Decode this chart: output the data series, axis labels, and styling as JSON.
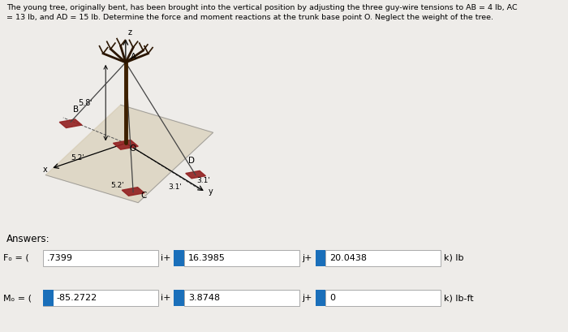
{
  "title_line1": "The young tree, originally bent, has been brought into the vertical position by adjusting the three guy-wire tensions to AB = 4 lb, AC",
  "title_line2": "= 13 lb, and AD = 15 lb. Determine the force and moment reactions at the trunk base point O. Neglect the weight of the tree.",
  "answers_label": "Answers:",
  "fo_val1": ".7399",
  "fo_val2": "16.3985",
  "fo_val3": "20.0438",
  "mo_val1": "-85.2722",
  "mo_val2": "3.8748",
  "mo_val3": "0",
  "fo_unit": "k) lb",
  "mo_unit": "k) lb-ft",
  "icon_color": "#1a6fba",
  "bg_color": "#eeece9",
  "box_bg": "#ffffff",
  "box_border": "#aaaaaa",
  "text_color": "#000000",
  "font_size_title": 6.8,
  "font_size_answers": 8.5,
  "font_size_values": 8.0
}
